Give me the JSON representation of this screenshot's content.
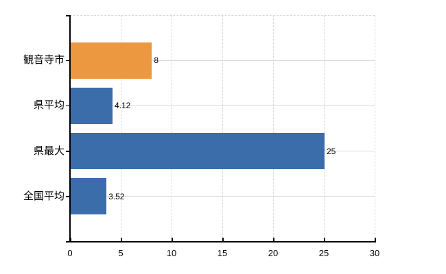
{
  "chart_data": {
    "type": "bar",
    "orientation": "horizontal",
    "title": "",
    "xlabel": "",
    "ylabel": "",
    "categories": [
      "観音寺市",
      "県平均",
      "県最大",
      "全国平均"
    ],
    "values": [
      8,
      4.12,
      25,
      3.52
    ],
    "value_labels": [
      "8",
      "4.12",
      "25",
      "3.52"
    ],
    "bar_colors": [
      "#EC9840",
      "#3B6DAB",
      "#3B6DAB",
      "#3B6DAB"
    ],
    "highlight_color": "#EC9840",
    "default_bar_color": "#3B6DAB",
    "xlim": [
      0,
      30
    ],
    "x_ticks": [
      "0",
      "5",
      "10",
      "15",
      "20",
      "25",
      "30"
    ],
    "grid": "on",
    "legend": "none",
    "gridline_color": "#D9D9D9",
    "axis_color": "#000000",
    "text_color": "#000000",
    "background_color": "#FFFFFF"
  }
}
